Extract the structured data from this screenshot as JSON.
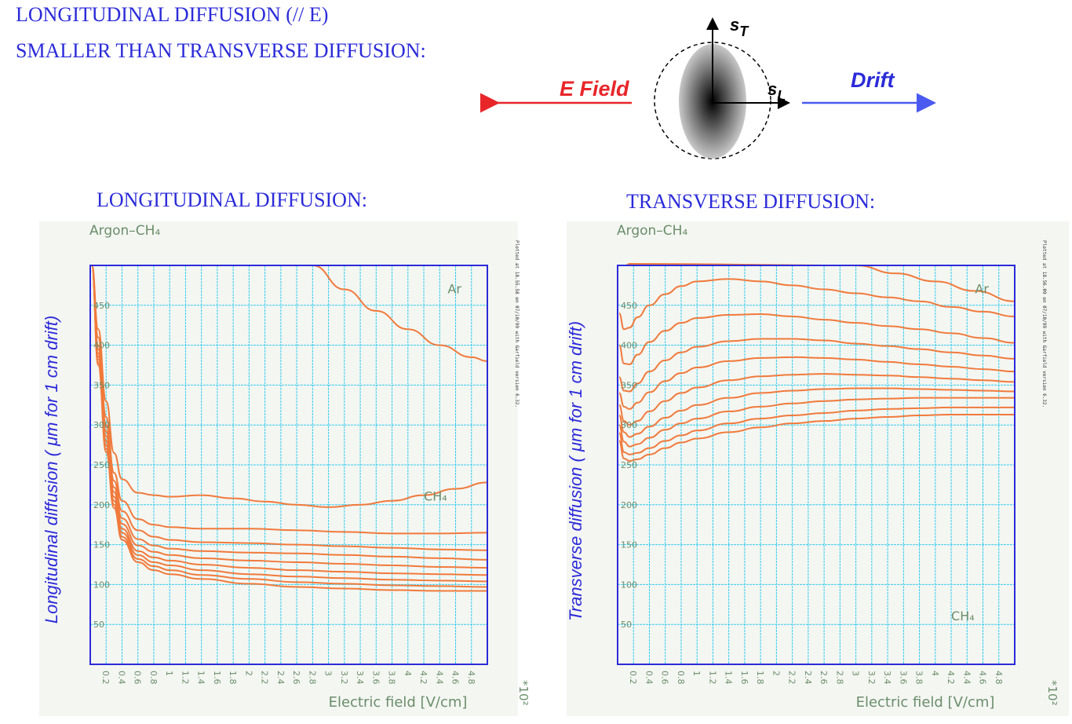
{
  "header": {
    "line1": "LONGITUDINAL DIFFUSION (// E)",
    "line2": "SMALLER THAN TRANSVERSE DIFFUSION:"
  },
  "diagram": {
    "e_field_label": "E Field",
    "drift_label": "Drift",
    "sigma_t_label": "s",
    "sigma_t_sub": "T",
    "sigma_l_label": "s",
    "sigma_l_sub": "L",
    "colors": {
      "efield": "#e8262a",
      "drift": "#4a5af0",
      "text": "#2b2bd9"
    }
  },
  "chart_data": [
    {
      "type": "line",
      "heading": "LONGITUDINAL DIFFUSION:",
      "subtitle": "Argon–CH₄",
      "xlabel": "Electric field [V/cm]",
      "ylabel": "Longitudinal diffusion (  μm for 1 cm drift)",
      "x_multiplier": "*10²",
      "side_note": "Plotted at 18.55.58 on 07/10/99 with Garfield version 6.32.",
      "xlim": [
        0,
        5.0
      ],
      "ylim": [
        0,
        500
      ],
      "xticks": [
        "0.2",
        "0.4",
        "0.6",
        "0.8",
        "1",
        "1.2",
        "1.4",
        "1.6",
        "1.8",
        "2",
        "2.2",
        "2.4",
        "2.6",
        "2.8",
        "3",
        "3.2",
        "3.4",
        "3.6",
        "3.8",
        "4",
        "4.2",
        "4.4",
        "4.6",
        "4.8"
      ],
      "yticks": [
        "50",
        "100",
        "150",
        "200",
        "250",
        "300",
        "350",
        "400",
        "450"
      ],
      "grid": true,
      "line_color": "#f07a3c",
      "annotations": [
        {
          "text": "Ar",
          "x": 4.5,
          "y": 465
        },
        {
          "text": "CH₄",
          "x": 4.2,
          "y": 205
        }
      ],
      "series": [
        {
          "name": "Ar",
          "x": [
            2.8,
            3.2,
            3.6,
            4.0,
            4.4,
            4.8,
            5.0
          ],
          "y": [
            500,
            470,
            443,
            420,
            400,
            385,
            380
          ]
        },
        {
          "name": "CH₄",
          "x": [
            0.02,
            0.1,
            0.2,
            0.3,
            0.4,
            0.6,
            0.8,
            1.0,
            1.4,
            1.8,
            2.2,
            2.6,
            3.0,
            3.4,
            3.8,
            4.2,
            4.6,
            5.0
          ],
          "y": [
            500,
            420,
            330,
            265,
            232,
            215,
            212,
            210,
            212,
            208,
            204,
            200,
            197,
            200,
            205,
            212,
            220,
            228
          ]
        },
        {
          "x": [
            0.02,
            0.1,
            0.2,
            0.3,
            0.4,
            0.6,
            0.8,
            1.0,
            1.4,
            2.0,
            2.6,
            3.2,
            3.8,
            4.4,
            5.0
          ],
          "y": [
            500,
            410,
            310,
            240,
            205,
            182,
            175,
            172,
            170,
            170,
            168,
            166,
            164,
            164,
            165
          ]
        },
        {
          "x": [
            0.02,
            0.1,
            0.2,
            0.3,
            0.4,
            0.6,
            0.8,
            1.0,
            1.4,
            2.0,
            2.6,
            3.2,
            3.8,
            4.4,
            5.0
          ],
          "y": [
            500,
            400,
            300,
            230,
            192,
            168,
            160,
            156,
            153,
            152,
            150,
            148,
            146,
            144,
            143
          ]
        },
        {
          "x": [
            0.02,
            0.1,
            0.2,
            0.3,
            0.4,
            0.6,
            0.8,
            1.0,
            1.4,
            2.0,
            2.6,
            3.2,
            3.8,
            4.4,
            5.0
          ],
          "y": [
            500,
            395,
            292,
            222,
            183,
            157,
            149,
            145,
            142,
            140,
            139,
            137,
            135,
            133,
            131
          ]
        },
        {
          "x": [
            0.02,
            0.1,
            0.2,
            0.3,
            0.4,
            0.6,
            0.8,
            1.0,
            1.4,
            2.0,
            2.6,
            3.2,
            3.8,
            4.4,
            5.0
          ],
          "y": [
            500,
            390,
            286,
            216,
            176,
            149,
            141,
            137,
            133,
            130,
            128,
            126,
            124,
            122,
            121
          ]
        },
        {
          "x": [
            0.02,
            0.1,
            0.2,
            0.3,
            0.4,
            0.6,
            0.8,
            1.0,
            1.4,
            2.0,
            2.6,
            3.2,
            3.8,
            4.4,
            5.0
          ],
          "y": [
            500,
            386,
            280,
            210,
            170,
            142,
            134,
            130,
            125,
            121,
            118,
            116,
            114,
            113,
            112
          ]
        },
        {
          "x": [
            0.02,
            0.1,
            0.2,
            0.3,
            0.4,
            0.6,
            0.8,
            1.0,
            1.4,
            2.0,
            2.6,
            3.2,
            3.8,
            4.4,
            5.0
          ],
          "y": [
            500,
            382,
            275,
            205,
            165,
            137,
            128,
            124,
            118,
            113,
            110,
            108,
            106,
            105,
            104
          ]
        },
        {
          "x": [
            0.02,
            0.1,
            0.2,
            0.3,
            0.4,
            0.6,
            0.8,
            1.0,
            1.4,
            2.0,
            2.6,
            3.2,
            3.8,
            4.4,
            5.0
          ],
          "y": [
            500,
            378,
            270,
            200,
            160,
            132,
            123,
            118,
            112,
            107,
            103,
            101,
            99,
            98,
            97
          ]
        },
        {
          "x": [
            0.02,
            0.1,
            0.2,
            0.3,
            0.4,
            0.6,
            0.8,
            1.0,
            1.4,
            2.0,
            2.6,
            3.2,
            3.8,
            4.4,
            5.0
          ],
          "y": [
            500,
            375,
            266,
            196,
            156,
            128,
            118,
            113,
            107,
            101,
            97,
            95,
            93,
            92,
            92
          ]
        }
      ]
    },
    {
      "type": "line",
      "heading": "TRANSVERSE DIFFUSION:",
      "subtitle": "Argon–CH₄",
      "xlabel": "Electric field [V/cm]",
      "ylabel": "Transverse diffusion (  μm for 1 cm drift)",
      "x_multiplier": "*10²",
      "side_note": "Plotted at 18.56.09 on 07/10/99 with Garfield version 6.32.",
      "xlim": [
        0,
        5.0
      ],
      "ylim": [
        0,
        500
      ],
      "xticks": [
        "0.2",
        "0.4",
        "0.6",
        "0.8",
        "1",
        "1.2",
        "1.4",
        "1.6",
        "1.8",
        "2",
        "2.2",
        "2.4",
        "2.6",
        "2.8",
        "3",
        "3.2",
        "3.4",
        "3.6",
        "3.8",
        "4",
        "4.2",
        "4.4",
        "4.6",
        "4.8"
      ],
      "yticks": [
        "50",
        "100",
        "150",
        "200",
        "250",
        "300",
        "350",
        "400",
        "450"
      ],
      "grid": true,
      "line_color": "#f07a3c",
      "annotations": [
        {
          "text": "Ar",
          "x": 4.5,
          "y": 465
        },
        {
          "text": "CH₄",
          "x": 4.2,
          "y": 55
        }
      ],
      "series": [
        {
          "name": "Ar",
          "x": [
            0.02,
            0.1,
            0.15,
            3.0,
            3.5,
            4.0,
            4.5,
            5.0
          ],
          "y": [
            500,
            500,
            502,
            500,
            490,
            480,
            468,
            455
          ]
        },
        {
          "x": [
            0.02,
            0.08,
            0.15,
            0.25,
            0.4,
            0.6,
            0.8,
            1.0,
            1.4,
            1.8,
            2.2,
            2.6,
            3.0,
            3.4,
            3.8,
            4.2,
            4.6,
            5.0
          ],
          "y": [
            440,
            420,
            422,
            435,
            450,
            464,
            474,
            480,
            483,
            480,
            475,
            470,
            465,
            460,
            455,
            448,
            442,
            436
          ]
        },
        {
          "x": [
            0.02,
            0.08,
            0.15,
            0.25,
            0.4,
            0.6,
            0.8,
            1.0,
            1.4,
            1.8,
            2.2,
            2.6,
            3.0,
            3.4,
            3.8,
            4.2,
            4.6,
            5.0
          ],
          "y": [
            400,
            377,
            376,
            388,
            404,
            418,
            428,
            434,
            438,
            439,
            436,
            432,
            428,
            424,
            420,
            415,
            409,
            403
          ]
        },
        {
          "x": [
            0.02,
            0.08,
            0.15,
            0.25,
            0.4,
            0.6,
            0.8,
            1.0,
            1.4,
            1.8,
            2.2,
            2.6,
            3.0,
            3.4,
            3.8,
            4.2,
            4.6,
            5.0
          ],
          "y": [
            360,
            343,
            342,
            352,
            367,
            381,
            391,
            398,
            405,
            408,
            408,
            406,
            402,
            399,
            395,
            391,
            387,
            383
          ]
        },
        {
          "x": [
            0.02,
            0.08,
            0.15,
            0.25,
            0.4,
            0.6,
            0.8,
            1.0,
            1.4,
            1.8,
            2.2,
            2.6,
            3.0,
            3.4,
            3.8,
            4.2,
            4.6,
            5.0
          ],
          "y": [
            340,
            323,
            320,
            328,
            341,
            355,
            365,
            372,
            380,
            384,
            385,
            384,
            382,
            379,
            376,
            373,
            370,
            367
          ]
        },
        {
          "x": [
            0.02,
            0.08,
            0.15,
            0.25,
            0.4,
            0.6,
            0.8,
            1.0,
            1.4,
            1.8,
            2.2,
            2.6,
            3.0,
            3.4,
            3.8,
            4.2,
            4.6,
            5.0
          ],
          "y": [
            325,
            305,
            300,
            305,
            317,
            330,
            340,
            347,
            356,
            361,
            363,
            364,
            363,
            362,
            360,
            358,
            356,
            354
          ]
        },
        {
          "x": [
            0.02,
            0.08,
            0.15,
            0.25,
            0.4,
            0.6,
            0.8,
            1.0,
            1.4,
            1.8,
            2.2,
            2.6,
            3.0,
            3.4,
            3.8,
            4.2,
            4.6,
            5.0
          ],
          "y": [
            312,
            291,
            285,
            289,
            298,
            309,
            318,
            325,
            334,
            340,
            343,
            345,
            346,
            346,
            345,
            344,
            343,
            342
          ]
        },
        {
          "x": [
            0.02,
            0.08,
            0.15,
            0.25,
            0.4,
            0.6,
            0.8,
            1.0,
            1.4,
            1.8,
            2.2,
            2.6,
            3.0,
            3.4,
            3.8,
            4.2,
            4.6,
            5.0
          ],
          "y": [
            300,
            279,
            273,
            276,
            284,
            294,
            302,
            308,
            317,
            323,
            327,
            330,
            332,
            333,
            334,
            334,
            334,
            334
          ]
        },
        {
          "x": [
            0.02,
            0.08,
            0.15,
            0.25,
            0.4,
            0.6,
            0.8,
            1.0,
            1.4,
            1.8,
            2.2,
            2.6,
            3.0,
            3.4,
            3.8,
            4.2,
            4.6,
            5.0
          ],
          "y": [
            290,
            266,
            263,
            265,
            271,
            280,
            287,
            293,
            302,
            308,
            312,
            315,
            318,
            320,
            321,
            322,
            322,
            322
          ]
        },
        {
          "name": "CH₄",
          "x": [
            0.02,
            0.08,
            0.15,
            0.25,
            0.4,
            0.6,
            0.8,
            1.0,
            1.4,
            1.8,
            2.2,
            2.6,
            3.0,
            3.4,
            3.8,
            4.2,
            4.6,
            5.0
          ],
          "y": [
            280,
            258,
            255,
            257,
            263,
            271,
            278,
            283,
            291,
            297,
            302,
            305,
            308,
            310,
            312,
            313,
            313,
            313
          ]
        }
      ]
    }
  ]
}
